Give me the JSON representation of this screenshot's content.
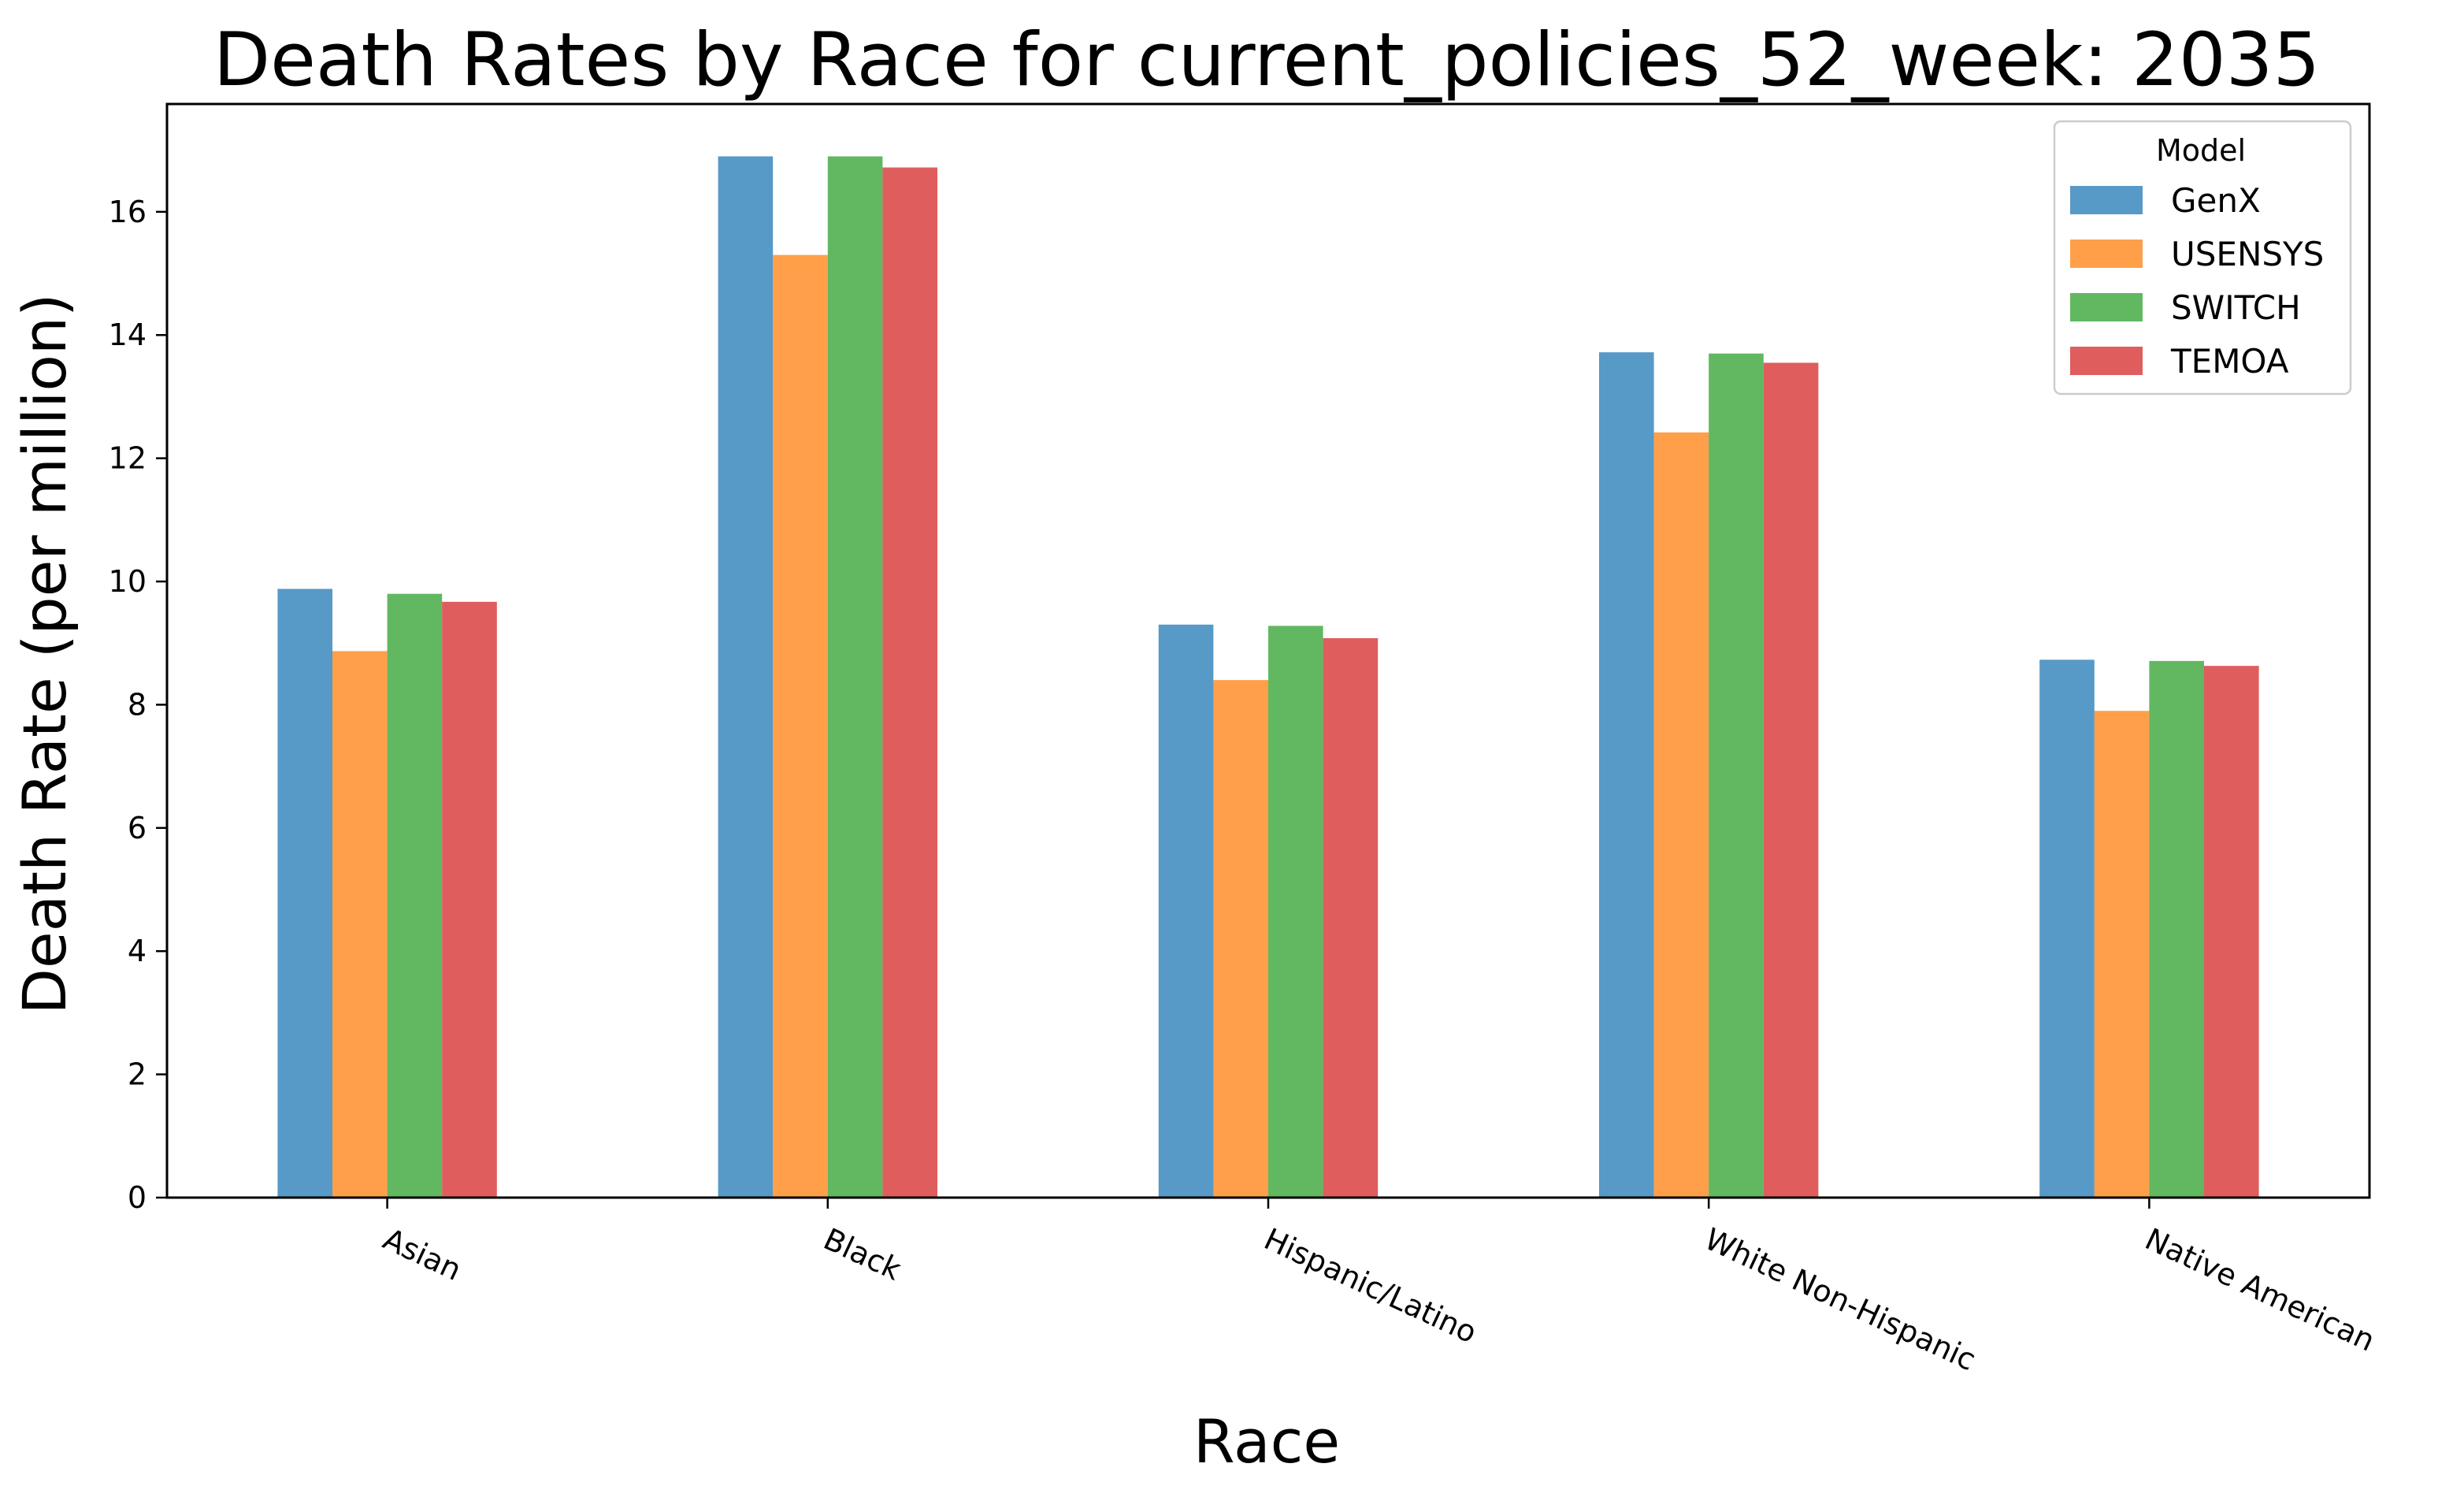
{
  "chart_data": {
    "type": "bar",
    "title": "Death Rates by Race for current_policies_52_week: 2035",
    "xlabel": "Race",
    "ylabel": "Death Rate (per million)",
    "categories": [
      "Asian",
      "Black",
      "Hispanic/Latino",
      "White Non-Hispanic",
      "Native American"
    ],
    "series": [
      {
        "name": "GenX",
        "color": "#1f77b4",
        "values": [
          9.88,
          16.9,
          9.3,
          13.72,
          8.73
        ]
      },
      {
        "name": "USENSYS",
        "color": "#ff7f0e",
        "values": [
          8.87,
          15.3,
          8.4,
          12.42,
          7.9
        ]
      },
      {
        "name": "SWITCH",
        "color": "#2ca02c",
        "values": [
          9.8,
          16.9,
          9.28,
          13.7,
          8.71
        ]
      },
      {
        "name": "TEMOA",
        "color": "#d62728",
        "values": [
          9.67,
          16.72,
          9.08,
          13.55,
          8.63
        ]
      }
    ],
    "ylim": [
      0,
      17.75
    ],
    "yticks": [
      0,
      2,
      4,
      6,
      8,
      10,
      12,
      14,
      16
    ],
    "grid": false,
    "legend": {
      "title": "Model",
      "placement": "top-right"
    },
    "xtick_rotation": -25
  }
}
